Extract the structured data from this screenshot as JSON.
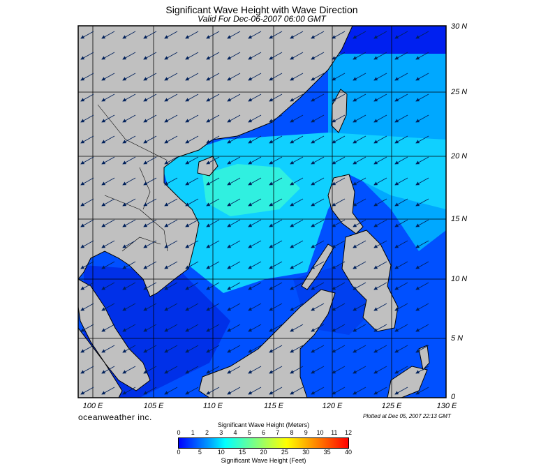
{
  "header": {
    "title": "Significant Wave Height with Wave Direction",
    "subtitle": "Valid For Dec-06-2007 06:00 GMT"
  },
  "map": {
    "lat_labels": [
      "30 N",
      "25 N",
      "20 N",
      "15 N",
      "10 N",
      "5 N",
      "0"
    ],
    "lon_labels": [
      "100 E",
      "105 E",
      "110 E",
      "115 E",
      "120 E",
      "125 E",
      "130 E"
    ],
    "lat_range": [
      0,
      30
    ],
    "lon_range": [
      99.8,
      130
    ],
    "grid": true,
    "land_color": "#c0c0c0",
    "arrow_direction": "toward southwest"
  },
  "footer": {
    "brand": "oceanweather inc.",
    "plotted": "Plotted at Dec 05, 2007 22:13 GMT"
  },
  "colorbar": {
    "title_top": "Significant Wave Height (Meters)",
    "title_bottom": "Significant Wave Height (Feet)",
    "meters_ticks": [
      "0",
      "1",
      "2",
      "3",
      "4",
      "5",
      "6",
      "7",
      "8",
      "9",
      "10",
      "11",
      "12"
    ],
    "feet_ticks": [
      "0",
      "5",
      "10",
      "15",
      "20",
      "25",
      "30",
      "35",
      "40"
    ],
    "colors": [
      "#0000ff",
      "#0050ff",
      "#00a0ff",
      "#00ffff",
      "#40ffc0",
      "#80ff80",
      "#c0ff40",
      "#ffff00",
      "#ffc000",
      "#ff8000",
      "#ff4000",
      "#ff0000"
    ]
  }
}
